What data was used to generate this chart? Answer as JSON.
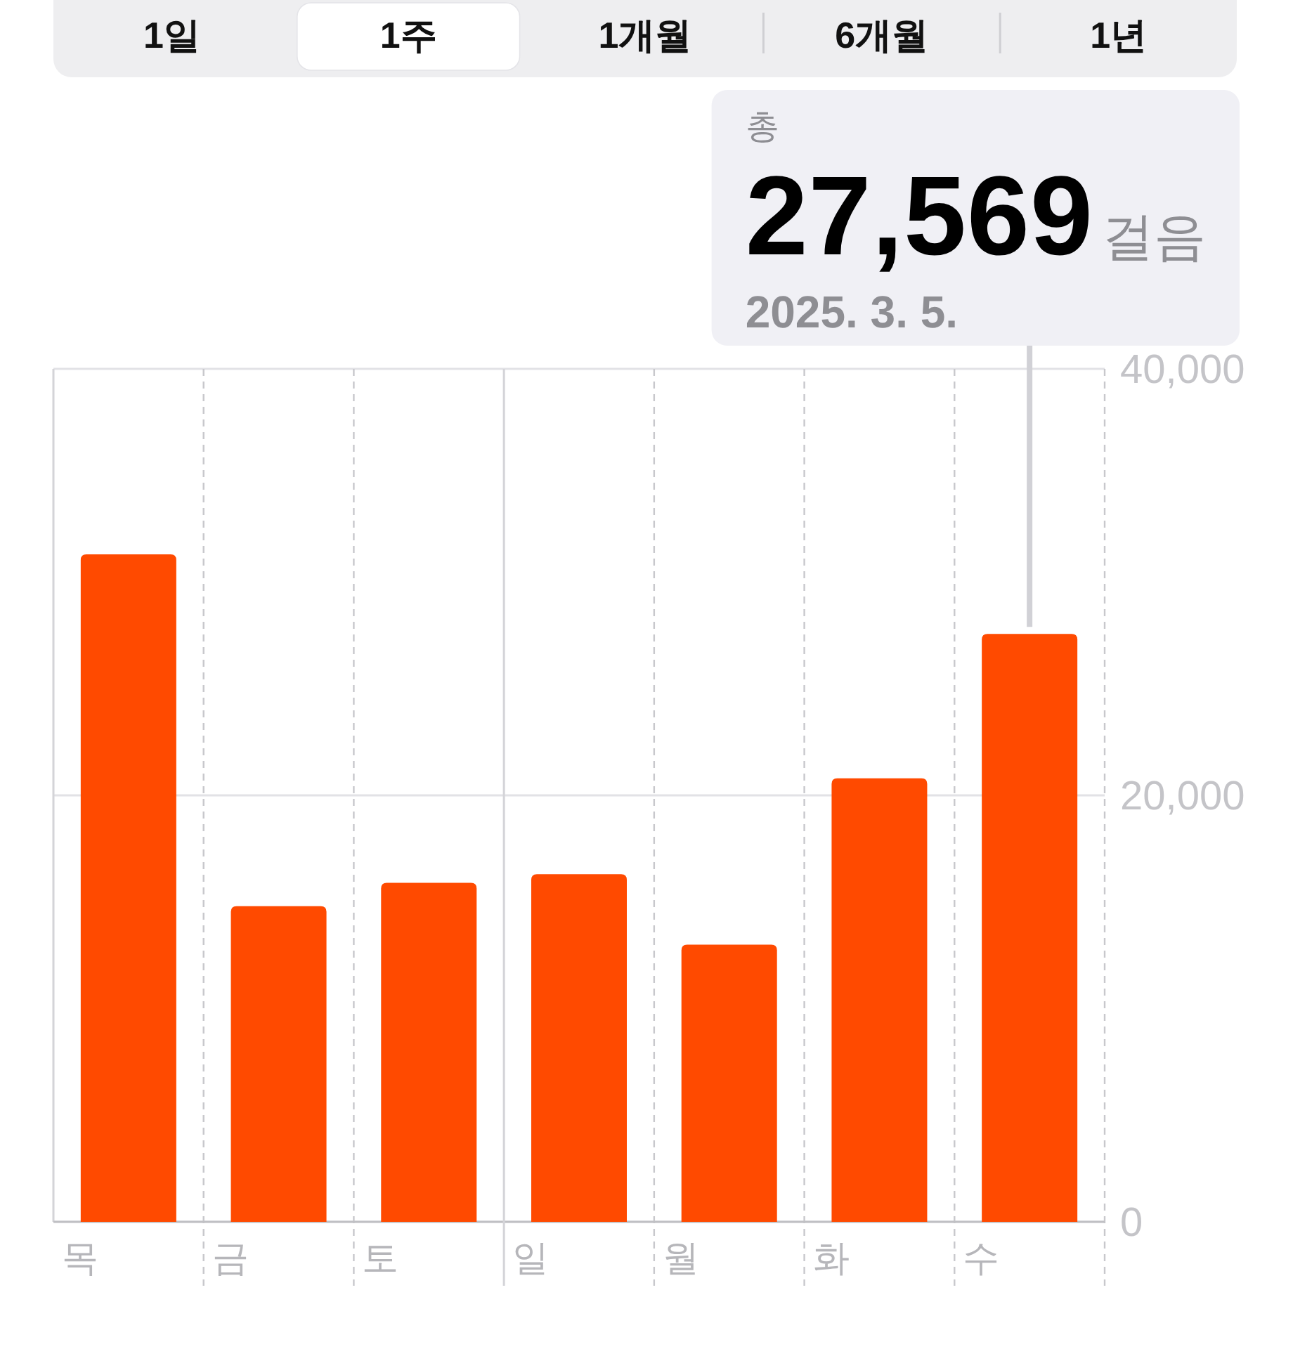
{
  "chart_data": {
    "type": "bar",
    "categories": [
      "목",
      "금",
      "토",
      "일",
      "월",
      "화",
      "수"
    ],
    "values": [
      31300,
      14800,
      15900,
      16300,
      13000,
      20800,
      27569
    ],
    "color": "#ff4a00",
    "ylim": [
      0,
      40000
    ],
    "yticks": [
      0,
      {
        "value": 20000,
        "label": "20,000"
      },
      {
        "value": 40000,
        "label": "40,000"
      }
    ],
    "grid": true,
    "ref_lines": [
      {
        "axis": "x",
        "value": "일",
        "line_style": "solid",
        "color": "#d4d4d8"
      }
    ],
    "annotations": [
      "1일",
      "1주",
      "1개월",
      "6개월",
      "1년",
      "총",
      "27,569",
      "걸음",
      "2025. 3. 5."
    ]
  }
}
